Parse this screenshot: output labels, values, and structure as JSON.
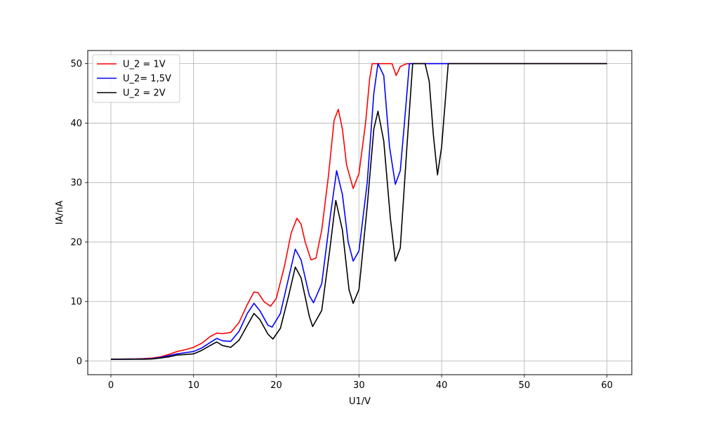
{
  "chart_data": {
    "type": "line",
    "title": "",
    "xlabel": "U1/V",
    "ylabel": "IA/nA",
    "xlim": [
      -2.8,
      63
    ],
    "ylim": [
      -2.3,
      52.2
    ],
    "xticks": [
      0,
      10,
      20,
      30,
      40,
      50,
      60
    ],
    "yticks": [
      0,
      10,
      20,
      30,
      40,
      50
    ],
    "grid": true,
    "legend_position": "top-left",
    "series": [
      {
        "name": "U_2 = 1V",
        "color": "#ff0000",
        "x": [
          0,
          1,
          2,
          3,
          4,
          5,
          6,
          7,
          8,
          9,
          10,
          11,
          12,
          12.8,
          13.5,
          14.5,
          15.5,
          16.5,
          17.3,
          17.8,
          18.5,
          19.3,
          20,
          21,
          21.8,
          22.5,
          23,
          23.5,
          24.2,
          24.8,
          25.5,
          26.3,
          27,
          27.5,
          28,
          28.5,
          29.3,
          30,
          30.8,
          31.3,
          31.6,
          34,
          34.5,
          35,
          35.8,
          60
        ],
        "y": [
          0.3,
          0.3,
          0.35,
          0.35,
          0.4,
          0.5,
          0.7,
          1.1,
          1.6,
          1.9,
          2.3,
          3,
          4.1,
          4.7,
          4.6,
          4.8,
          6.5,
          9.5,
          11.6,
          11.5,
          10,
          9.2,
          10.5,
          16,
          21.5,
          24,
          23,
          20,
          17,
          17.3,
          22,
          31,
          40.5,
          42.3,
          39,
          33,
          29,
          31.5,
          40,
          47.5,
          50,
          50,
          48,
          49.5,
          50,
          50
        ]
      },
      {
        "name": "U_2= 1,5V",
        "color": "#0000ff",
        "x": [
          0,
          2,
          4,
          5,
          6,
          7,
          8,
          9,
          10,
          11,
          12,
          12.8,
          13.5,
          14.5,
          15.5,
          16.5,
          17.3,
          18,
          19,
          19.5,
          20.5,
          21.5,
          22.3,
          23,
          24,
          24.5,
          25.5,
          26.5,
          27.3,
          28,
          28.7,
          29.3,
          30,
          31,
          31.8,
          32.3,
          33,
          33.7,
          34.4,
          35,
          35.5,
          36.1,
          60
        ],
        "y": [
          0.3,
          0.3,
          0.35,
          0.4,
          0.6,
          0.9,
          1.2,
          1.4,
          1.6,
          2.2,
          3.1,
          3.8,
          3.4,
          3.3,
          5,
          8,
          9.7,
          8.5,
          6,
          5.7,
          8,
          14,
          18.8,
          17,
          11,
          9.8,
          13,
          24,
          32,
          28,
          20,
          16.8,
          18.5,
          30,
          45,
          50,
          48,
          36,
          29.7,
          32,
          40,
          50,
          50
        ]
      },
      {
        "name": "U_2 = 2V",
        "color": "#000000",
        "x": [
          0,
          2,
          4,
          5,
          6,
          7,
          8,
          9,
          10,
          11,
          12,
          12.8,
          13.5,
          14.5,
          15.5,
          16.5,
          17.3,
          18,
          19,
          19.6,
          20.5,
          21.5,
          22.3,
          23,
          24,
          24.4,
          25.5,
          26.5,
          27.2,
          28,
          28.8,
          29.3,
          30,
          31,
          31.8,
          32.3,
          33,
          33.8,
          34.4,
          35,
          35.8,
          36.5,
          37,
          38,
          38.5,
          39,
          39.5,
          40,
          40.8,
          60
        ],
        "y": [
          0.3,
          0.3,
          0.3,
          0.35,
          0.5,
          0.7,
          1,
          1.1,
          1.2,
          1.8,
          2.6,
          3.2,
          2.6,
          2.3,
          3.5,
          6,
          8,
          7,
          4.5,
          3.7,
          5.5,
          11,
          15.8,
          14,
          7.5,
          5.8,
          8.5,
          19,
          27,
          22,
          12,
          9.7,
          12,
          26,
          39,
          42,
          37,
          24,
          16.8,
          19,
          36,
          50,
          50,
          50,
          47,
          38,
          31.3,
          36,
          50,
          50
        ]
      }
    ]
  }
}
